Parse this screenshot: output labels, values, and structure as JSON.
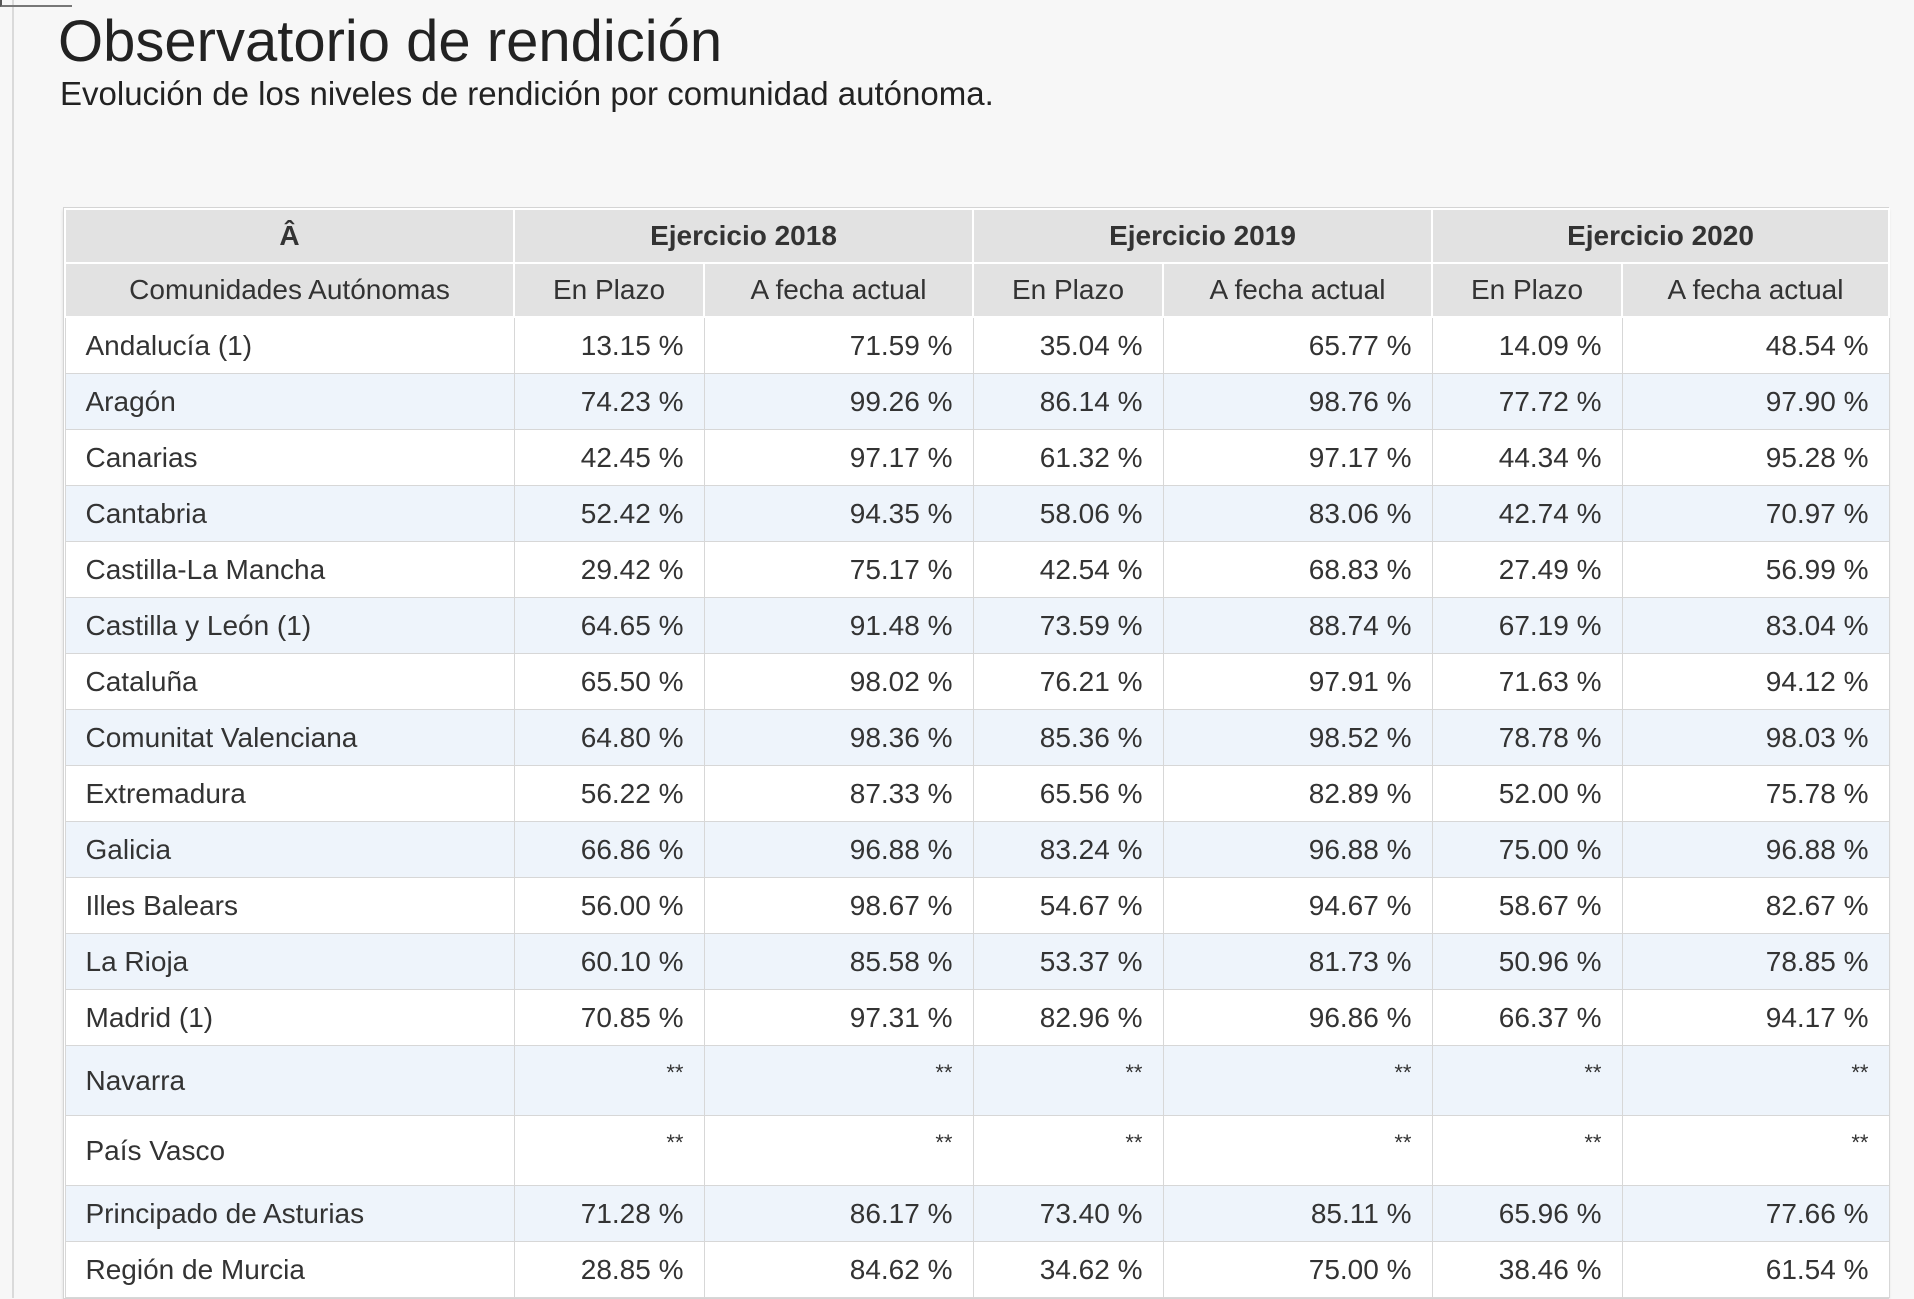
{
  "header": {
    "title": "Observatorio de rendición",
    "subtitle": "Evolución de los niveles de rendición por comunidad autónoma."
  },
  "table": {
    "corner": "Â",
    "groups": [
      "Ejercicio 2018",
      "Ejercicio 2019",
      "Ejercicio 2020"
    ],
    "row_label_header": "Comunidades Autónomas",
    "sub_headers": [
      "En Plazo",
      "A fecha actual",
      "En Plazo",
      "A fecha actual",
      "En Plazo",
      "A fecha actual"
    ],
    "rows": [
      {
        "name": "Andalucía (1)",
        "values": [
          "13.15 %",
          "71.59 %",
          "35.04 %",
          "65.77 %",
          "14.09 %",
          "48.54 %"
        ]
      },
      {
        "name": "Aragón",
        "values": [
          "74.23 %",
          "99.26 %",
          "86.14 %",
          "98.76 %",
          "77.72 %",
          "97.90 %"
        ]
      },
      {
        "name": "Canarias",
        "values": [
          "42.45 %",
          "97.17 %",
          "61.32 %",
          "97.17 %",
          "44.34 %",
          "95.28 %"
        ]
      },
      {
        "name": "Cantabria",
        "values": [
          "52.42 %",
          "94.35 %",
          "58.06 %",
          "83.06 %",
          "42.74 %",
          "70.97 %"
        ]
      },
      {
        "name": "Castilla-La Mancha",
        "values": [
          "29.42 %",
          "75.17 %",
          "42.54 %",
          "68.83 %",
          "27.49 %",
          "56.99 %"
        ]
      },
      {
        "name": "Castilla y León (1)",
        "values": [
          "64.65 %",
          "91.48 %",
          "73.59 %",
          "88.74 %",
          "67.19 %",
          "83.04 %"
        ]
      },
      {
        "name": "Cataluña",
        "values": [
          "65.50 %",
          "98.02 %",
          "76.21 %",
          "97.91 %",
          "71.63 %",
          "94.12 %"
        ]
      },
      {
        "name": "Comunitat Valenciana",
        "values": [
          "64.80 %",
          "98.36 %",
          "85.36 %",
          "98.52 %",
          "78.78 %",
          "98.03 %"
        ]
      },
      {
        "name": "Extremadura",
        "values": [
          "56.22 %",
          "87.33 %",
          "65.56 %",
          "82.89 %",
          "52.00 %",
          "75.78 %"
        ]
      },
      {
        "name": "Galicia",
        "values": [
          "66.86 %",
          "96.88 %",
          "83.24 %",
          "96.88 %",
          "75.00 %",
          "96.88 %"
        ]
      },
      {
        "name": "Illes Balears",
        "values": [
          "56.00 %",
          "98.67 %",
          "54.67 %",
          "94.67 %",
          "58.67 %",
          "82.67 %"
        ]
      },
      {
        "name": "La Rioja",
        "values": [
          "60.10 %",
          "85.58 %",
          "53.37 %",
          "81.73 %",
          "50.96 %",
          "78.85 %"
        ]
      },
      {
        "name": "Madrid (1)",
        "values": [
          "70.85 %",
          "97.31 %",
          "82.96 %",
          "96.86 %",
          "66.37 %",
          "94.17 %"
        ]
      },
      {
        "name": "Navarra",
        "values": [
          "**",
          "**",
          "**",
          "**",
          "**",
          "**"
        ]
      },
      {
        "name": "País Vasco",
        "values": [
          "**",
          "**",
          "**",
          "**",
          "**",
          "**"
        ]
      },
      {
        "name": "Principado de Asturias",
        "values": [
          "71.28 %",
          "86.17 %",
          "73.40 %",
          "85.11 %",
          "65.96 %",
          "77.66 %"
        ]
      },
      {
        "name": "Región de Murcia",
        "values": [
          "28.85 %",
          "84.62 %",
          "34.62 %",
          "75.00 %",
          "38.46 %",
          "61.54 %"
        ]
      }
    ]
  }
}
